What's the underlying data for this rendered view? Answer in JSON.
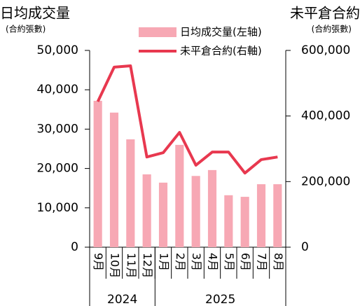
{
  "chart_data": {
    "type": "bar-line",
    "left_title": "日均成交量",
    "left_subtitle": "(合約張數)",
    "right_title": "未平倉合約",
    "right_subtitle": "(合約張數)",
    "categories": [
      "9月",
      "10月",
      "11月",
      "12月",
      "1月",
      "2月",
      "3月",
      "4月",
      "5月",
      "6月",
      "7月",
      "8月"
    ],
    "x_groups": [
      {
        "label": "2024",
        "count": 4
      },
      {
        "label": "2025",
        "count": 8
      }
    ],
    "series": [
      {
        "name": "日均成交量(左轴)",
        "type": "bar",
        "color": "#f7a8b4",
        "values": [
          37200,
          34200,
          27400,
          18500,
          16400,
          26000,
          18100,
          19600,
          13200,
          12800,
          16000,
          16000
        ]
      },
      {
        "name": "未平倉合約(右軸)",
        "type": "line",
        "axis": "y2",
        "color": "#e8384f",
        "values": [
          444000,
          549000,
          553000,
          275000,
          288000,
          350000,
          250000,
          290000,
          290000,
          226000,
          267000,
          275000
        ]
      }
    ],
    "ylim": [
      0,
      50000
    ],
    "yticks": [
      0,
      {
        "value": 10000,
        "label": "10,000"
      },
      {
        "value": 20000,
        "label": "20,000"
      },
      {
        "value": 30000,
        "label": "30,000"
      },
      {
        "value": 40000,
        "label": "40,000"
      },
      {
        "value": 50000,
        "label": "50,000"
      }
    ],
    "y2lim": [
      0,
      600000
    ],
    "y2ticks": [
      0,
      {
        "value": 200000,
        "label": "200,000"
      },
      {
        "value": 400000,
        "label": "400,000"
      },
      {
        "value": 600000,
        "label": "600,000"
      }
    ],
    "legend": "top"
  }
}
